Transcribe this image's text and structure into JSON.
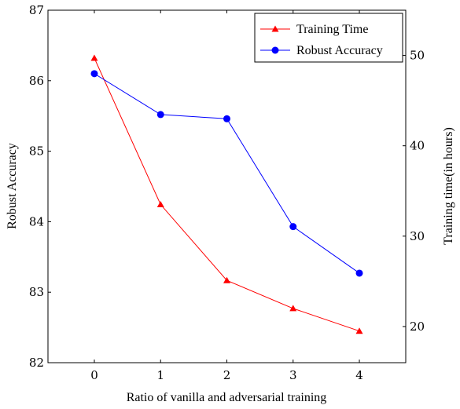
{
  "chart_data": {
    "type": "line",
    "x": [
      0,
      1,
      2,
      3,
      4
    ],
    "xlabel": "Ratio of vanilla and adversarial training",
    "xlim": [
      -0.7,
      4.7
    ],
    "xticks": [
      "0",
      "1",
      "2",
      "3",
      "4"
    ],
    "ylabel_left": "Robust Accuracy",
    "ylim_left": [
      82,
      87
    ],
    "yticks_left": [
      "82",
      "83",
      "84",
      "85",
      "86",
      "87"
    ],
    "ylabel_right": "Training time(in hours)",
    "ylim_right": [
      16,
      55
    ],
    "yticks_right": [
      "20",
      "30",
      "40",
      "50"
    ],
    "legend_position": "top-right",
    "series": [
      {
        "name": "Training Time",
        "axis": "right",
        "color": "#ff0000",
        "marker": "triangle",
        "values": [
          49.7,
          33.5,
          25.1,
          22.0,
          19.5
        ]
      },
      {
        "name": "Robust Accuracy",
        "axis": "left",
        "color": "#0000ff",
        "marker": "circle",
        "values": [
          86.1,
          85.52,
          85.46,
          83.93,
          83.27
        ]
      }
    ]
  }
}
